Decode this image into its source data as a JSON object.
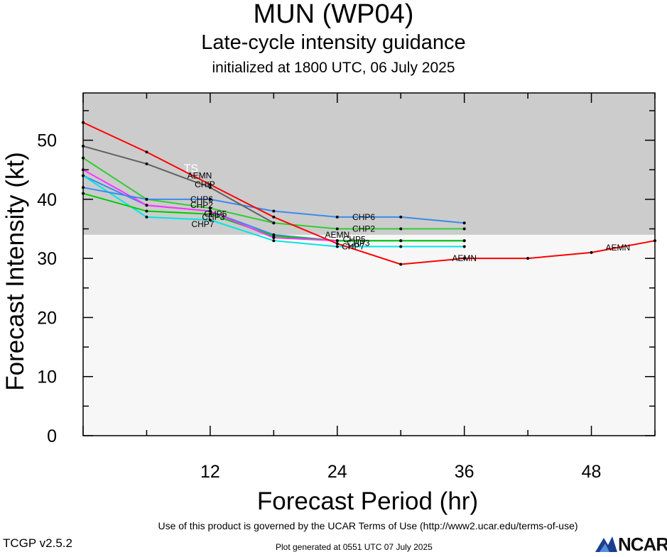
{
  "header": {
    "title": "MUN (WP04)",
    "subtitle": "Late-cycle intensity guidance",
    "init_line": "initialized at 1800 UTC, 06 July 2025"
  },
  "footer": {
    "terms": "Use of this product is governed by the UCAR Terms of Use (http://www2.ucar.edu/terms-of-use)",
    "version": "TCGP v2.5.2",
    "generated": "Plot generated at 0551 UTC   07 July 2025",
    "logo_text": "NCAR"
  },
  "chart_data": {
    "type": "line",
    "xlabel": "Forecast Period (hr)",
    "ylabel": "Forecast Intensity (kt)",
    "xlim": [
      0,
      54
    ],
    "ylim": [
      0,
      58
    ],
    "xticks": [
      12,
      24,
      36,
      48
    ],
    "yticks": [
      0,
      10,
      20,
      30,
      40,
      50
    ],
    "band": {
      "label": "TS",
      "from": 34,
      "to": 58,
      "color": "#cccccc"
    },
    "series": [
      {
        "name": "AEMN",
        "color": "#ff0000",
        "x": [
          0,
          6,
          12,
          18,
          24,
          30,
          36,
          42,
          48,
          54
        ],
        "y": [
          53,
          48,
          42.5,
          37,
          32.5,
          29,
          30,
          30,
          31,
          33
        ],
        "labels": [
          {
            "x": 11,
            "y": 44
          },
          {
            "x": 24,
            "y": 34
          },
          {
            "x": 36,
            "y": 30
          },
          {
            "x": 50.5,
            "y": 31.8
          }
        ]
      },
      {
        "name": "CHIP",
        "color": "#606060",
        "x": [
          0,
          6,
          12,
          18
        ],
        "y": [
          49,
          46,
          42,
          36
        ],
        "labels": [
          {
            "x": 11.5,
            "y": 42.5
          }
        ]
      },
      {
        "name": "CHP6",
        "color": "#3b8beb",
        "x": [
          0,
          6,
          12,
          18,
          24,
          30,
          36
        ],
        "y": [
          42,
          40,
          40,
          38,
          37,
          37,
          36
        ],
        "labels": [
          {
            "x": 11.2,
            "y": 40
          },
          {
            "x": 26.5,
            "y": 37
          }
        ]
      },
      {
        "name": "CHP2",
        "color": "#33cc33",
        "x": [
          0,
          6,
          12,
          18,
          24,
          30,
          36
        ],
        "y": [
          47,
          40,
          38.5,
          36,
          35,
          35,
          35
        ],
        "labels": [
          {
            "x": 11.2,
            "y": 39
          },
          {
            "x": 26.5,
            "y": 35
          }
        ]
      },
      {
        "name": "CHP5",
        "color": "#ff33ff",
        "x": [
          0,
          6,
          12,
          18,
          24
        ],
        "y": [
          45,
          39,
          38,
          33.5,
          33
        ],
        "labels": [
          {
            "x": 12.5,
            "y": 37.5
          },
          {
            "x": 25.6,
            "y": 33.2
          }
        ]
      },
      {
        "name": "CHP3",
        "color": "#00cc00",
        "x": [
          0,
          6,
          12,
          18,
          24,
          30,
          36
        ],
        "y": [
          41,
          38,
          37.5,
          33.8,
          33,
          33,
          33
        ],
        "labels": [
          {
            "x": 12.3,
            "y": 37
          },
          {
            "x": 26,
            "y": 32.6
          }
        ]
      },
      {
        "name": "CHP7",
        "color": "#00e6e6",
        "x": [
          0,
          6,
          12,
          18,
          24,
          30,
          36
        ],
        "y": [
          44,
          37,
          36.5,
          33,
          32,
          32,
          32
        ],
        "labels": [
          {
            "x": 11.3,
            "y": 35.8
          },
          {
            "x": 25.5,
            "y": 32
          }
        ]
      },
      {
        "name": "",
        "color": "#3b8beb",
        "x": [
          0,
          6,
          12,
          18,
          24,
          30,
          36
        ],
        "y": [
          44,
          39,
          38,
          34,
          33,
          33,
          33
        ],
        "labels": []
      }
    ]
  }
}
